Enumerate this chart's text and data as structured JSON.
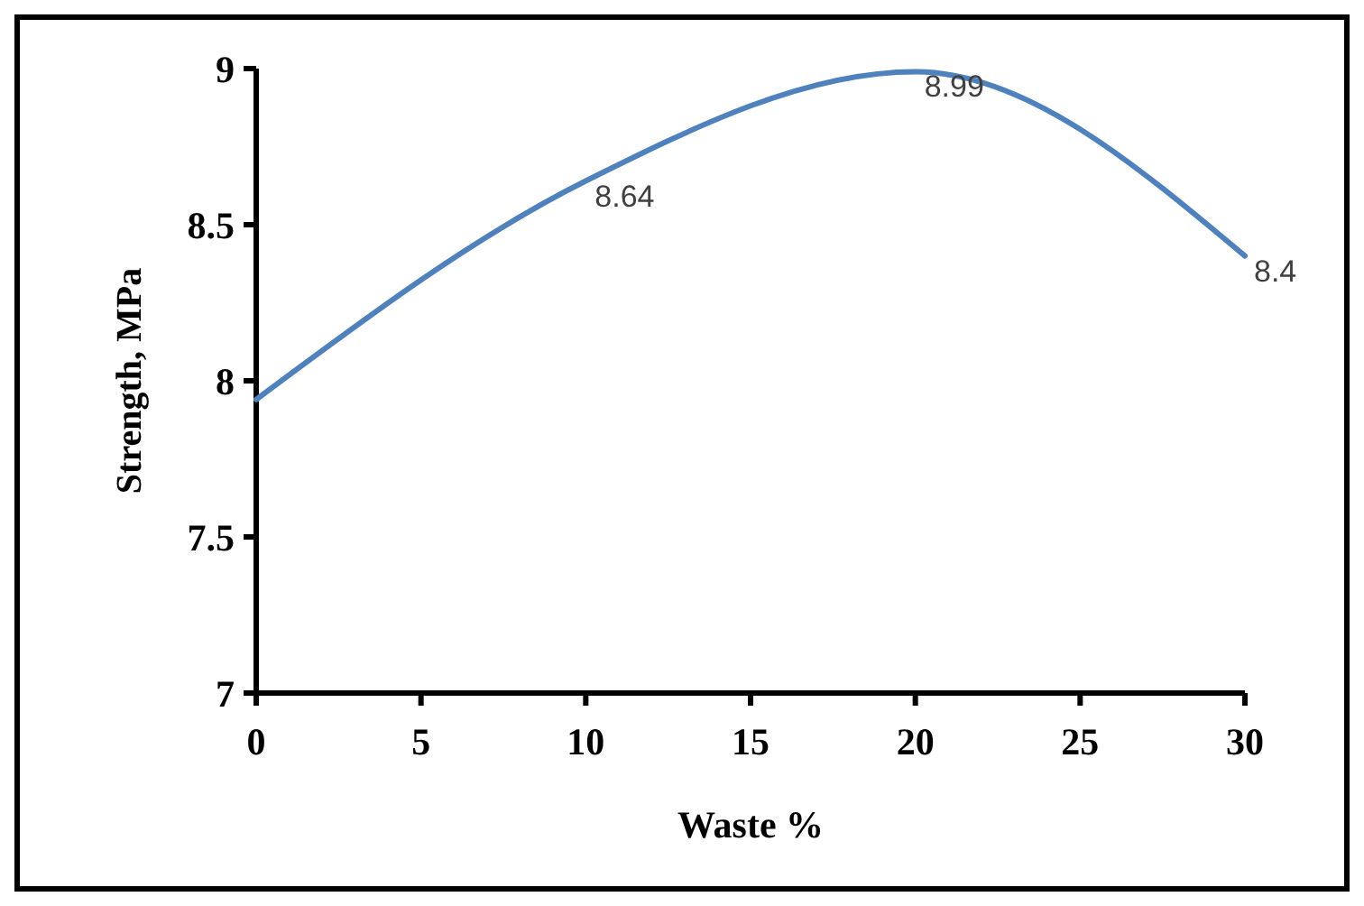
{
  "chart_data": {
    "type": "line",
    "xlabel": "Waste %",
    "ylabel": "Strength, MPa",
    "x": [
      0,
      10,
      20,
      30
    ],
    "series": [
      {
        "color": "#4f81bd",
        "values": [
          7.94,
          8.64,
          8.99,
          8.4
        ],
        "value_labels": [
          null,
          "8.64",
          "8.99",
          "8.4"
        ]
      }
    ],
    "xlim": [
      0,
      30
    ],
    "xticks": [
      0,
      5,
      10,
      15,
      20,
      25,
      30
    ],
    "ylim": [
      7,
      9
    ],
    "yticks": [
      7,
      7.5,
      8,
      8.5,
      9
    ],
    "marker": "none",
    "line_style": "solid"
  }
}
